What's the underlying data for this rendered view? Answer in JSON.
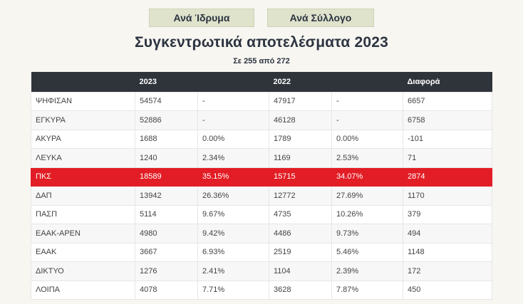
{
  "tabs": [
    {
      "label": "Ανά Ίδρυμα"
    },
    {
      "label": "Ανά Σύλλογο"
    }
  ],
  "title": "Συγκεντρωτικά αποτελέσματα 2023",
  "subtitle": "Σε 255 από 272",
  "table": {
    "headers": [
      "",
      "2023",
      "",
      "2022",
      "",
      "Διαφορά"
    ],
    "rows": [
      {
        "name": "ΨΗΦΙΣΑΝ",
        "v2023": "54574",
        "p2023": "-",
        "v2022": "47917",
        "p2022": "-",
        "diff": "6657"
      },
      {
        "name": "ΕΓΚΥΡΑ",
        "v2023": "52886",
        "p2023": "-",
        "v2022": "46128",
        "p2022": "-",
        "diff": "6758"
      },
      {
        "name": "ΑΚΥΡΑ",
        "v2023": "1688",
        "p2023": "0.00%",
        "v2022": "1789",
        "p2022": "0.00%",
        "diff": "-101"
      },
      {
        "name": "ΛΕΥΚΑ",
        "v2023": "1240",
        "p2023": "2.34%",
        "v2022": "1169",
        "p2022": "2.53%",
        "diff": "71"
      },
      {
        "name": "ΠΚΣ",
        "v2023": "18589",
        "p2023": "35.15%",
        "v2022": "15715",
        "p2022": "34.07%",
        "diff": "2874"
      },
      {
        "name": "ΔΑΠ",
        "v2023": "13942",
        "p2023": "26.36%",
        "v2022": "12772",
        "p2022": "27.69%",
        "diff": "1170"
      },
      {
        "name": "ΠΑΣΠ",
        "v2023": "5114",
        "p2023": "9.67%",
        "v2022": "4735",
        "p2022": "10.26%",
        "diff": "379"
      },
      {
        "name": "ΕΑΑΚ-ΑΡΕΝ",
        "v2023": "4980",
        "p2023": "9.42%",
        "v2022": "4486",
        "p2022": "9.73%",
        "diff": "494"
      },
      {
        "name": "ΕΑΑΚ",
        "v2023": "3667",
        "p2023": "6.93%",
        "v2022": "2519",
        "p2022": "5.46%",
        "diff": "1148"
      },
      {
        "name": "ΔΙΚΤΥΟ",
        "v2023": "1276",
        "p2023": "2.41%",
        "v2022": "1104",
        "p2022": "2.39%",
        "diff": "172"
      },
      {
        "name": "ΛΟΙΠΑ",
        "v2023": "4078",
        "p2023": "7.71%",
        "v2022": "3628",
        "p2022": "7.87%",
        "diff": "450"
      }
    ]
  },
  "colors": {
    "header_bg": "#2f343b",
    "highlight_row": "#e21d25",
    "tab_bg": "#dfe3cc",
    "title": "#2d3441"
  }
}
